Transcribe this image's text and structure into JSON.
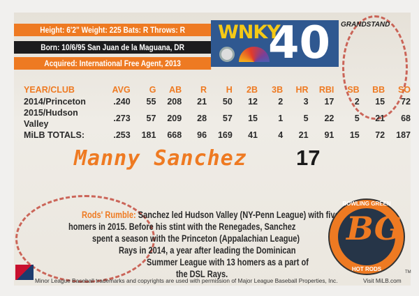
{
  "bio_bars": {
    "physical": "Height: 6'2\"   Weight: 225   Bats: R   Throws: R",
    "born": "Born: 10/6/95   San Juan de la Maguana, DR",
    "acquired": "Acquired: International Free Agent, 2013"
  },
  "sponsor": {
    "name": "WNKY",
    "channel": "40",
    "icons": [
      "cbs-eye-icon",
      "nbc-peacock-icon"
    ]
  },
  "brand": "GRANDSTAND",
  "stats": {
    "headers": [
      "YEAR/CLUB",
      "AVG",
      "G",
      "AB",
      "R",
      "H",
      "2B",
      "3B",
      "HR",
      "RBI",
      "SB",
      "BB",
      "SO"
    ],
    "rows": [
      [
        "2014/Princeton",
        ".240",
        "55",
        "208",
        "21",
        "50",
        "12",
        "2",
        "3",
        "17",
        "2",
        "15",
        "72"
      ],
      [
        "2015/Hudson Valley",
        ".273",
        "57",
        "209",
        "28",
        "57",
        "15",
        "1",
        "5",
        "22",
        "5",
        "21",
        "68"
      ],
      [
        "MiLB TOTALS:",
        ".253",
        "181",
        "668",
        "96",
        "169",
        "41",
        "4",
        "21",
        "91",
        "15",
        "72",
        "187"
      ]
    ]
  },
  "player": {
    "name": "Manny Sanchez",
    "number": "17"
  },
  "blurb": {
    "label": "Rods' Rumble:",
    "lines": [
      "Sanchez led Hudson Valley (NY-Penn League) with five",
      "homers in 2015. Before his stint with the Renegades, Sanchez",
      "spent a season with the Princeton (Appalachian League)",
      "Rays in 2014, a year after leading the Dominican",
      "Summer League with 13 homers as a part of",
      "the DSL Rays."
    ]
  },
  "team_logo": {
    "top": "BOWLING GREEN",
    "monogram": "BG",
    "bottom": "HOT RODS",
    "tm": "TM"
  },
  "footer": {
    "legal": "Minor League Baseball trademarks and copyrights are used  with permission of Major League Baseball Properties, Inc.",
    "visit": "Visit MiLB.com"
  },
  "colors": {
    "orange": "#ee7a22",
    "black": "#1c1c1e",
    "sponsor_blue": "#2f5890",
    "gold": "#f5c916"
  }
}
